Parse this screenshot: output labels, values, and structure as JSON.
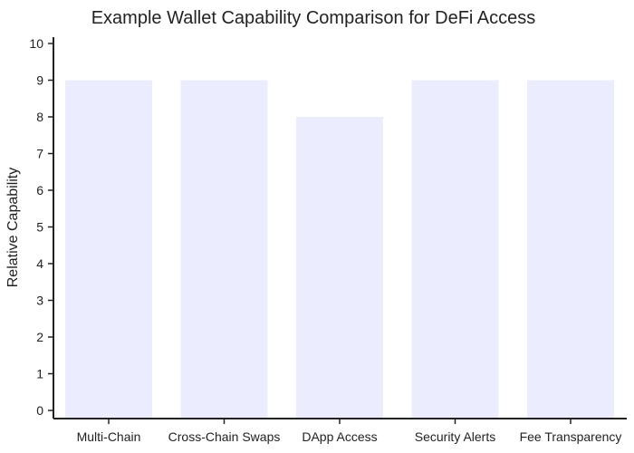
{
  "chart_data": {
    "type": "bar",
    "title": "Example Wallet Capability Comparison for DeFi Access",
    "xlabel": "",
    "ylabel": "Relative Capability",
    "categories": [
      "Multi-Chain",
      "Cross-Chain Swaps",
      "DApp Access",
      "Security Alerts",
      "Fee Transparency"
    ],
    "values": [
      9,
      9,
      8,
      9,
      9
    ],
    "ylim": [
      0,
      10
    ],
    "yticks": [
      0,
      1,
      2,
      3,
      4,
      5,
      6,
      7,
      8,
      9,
      10
    ],
    "grid": false,
    "legend": "none",
    "bar_color": "#ececff"
  }
}
